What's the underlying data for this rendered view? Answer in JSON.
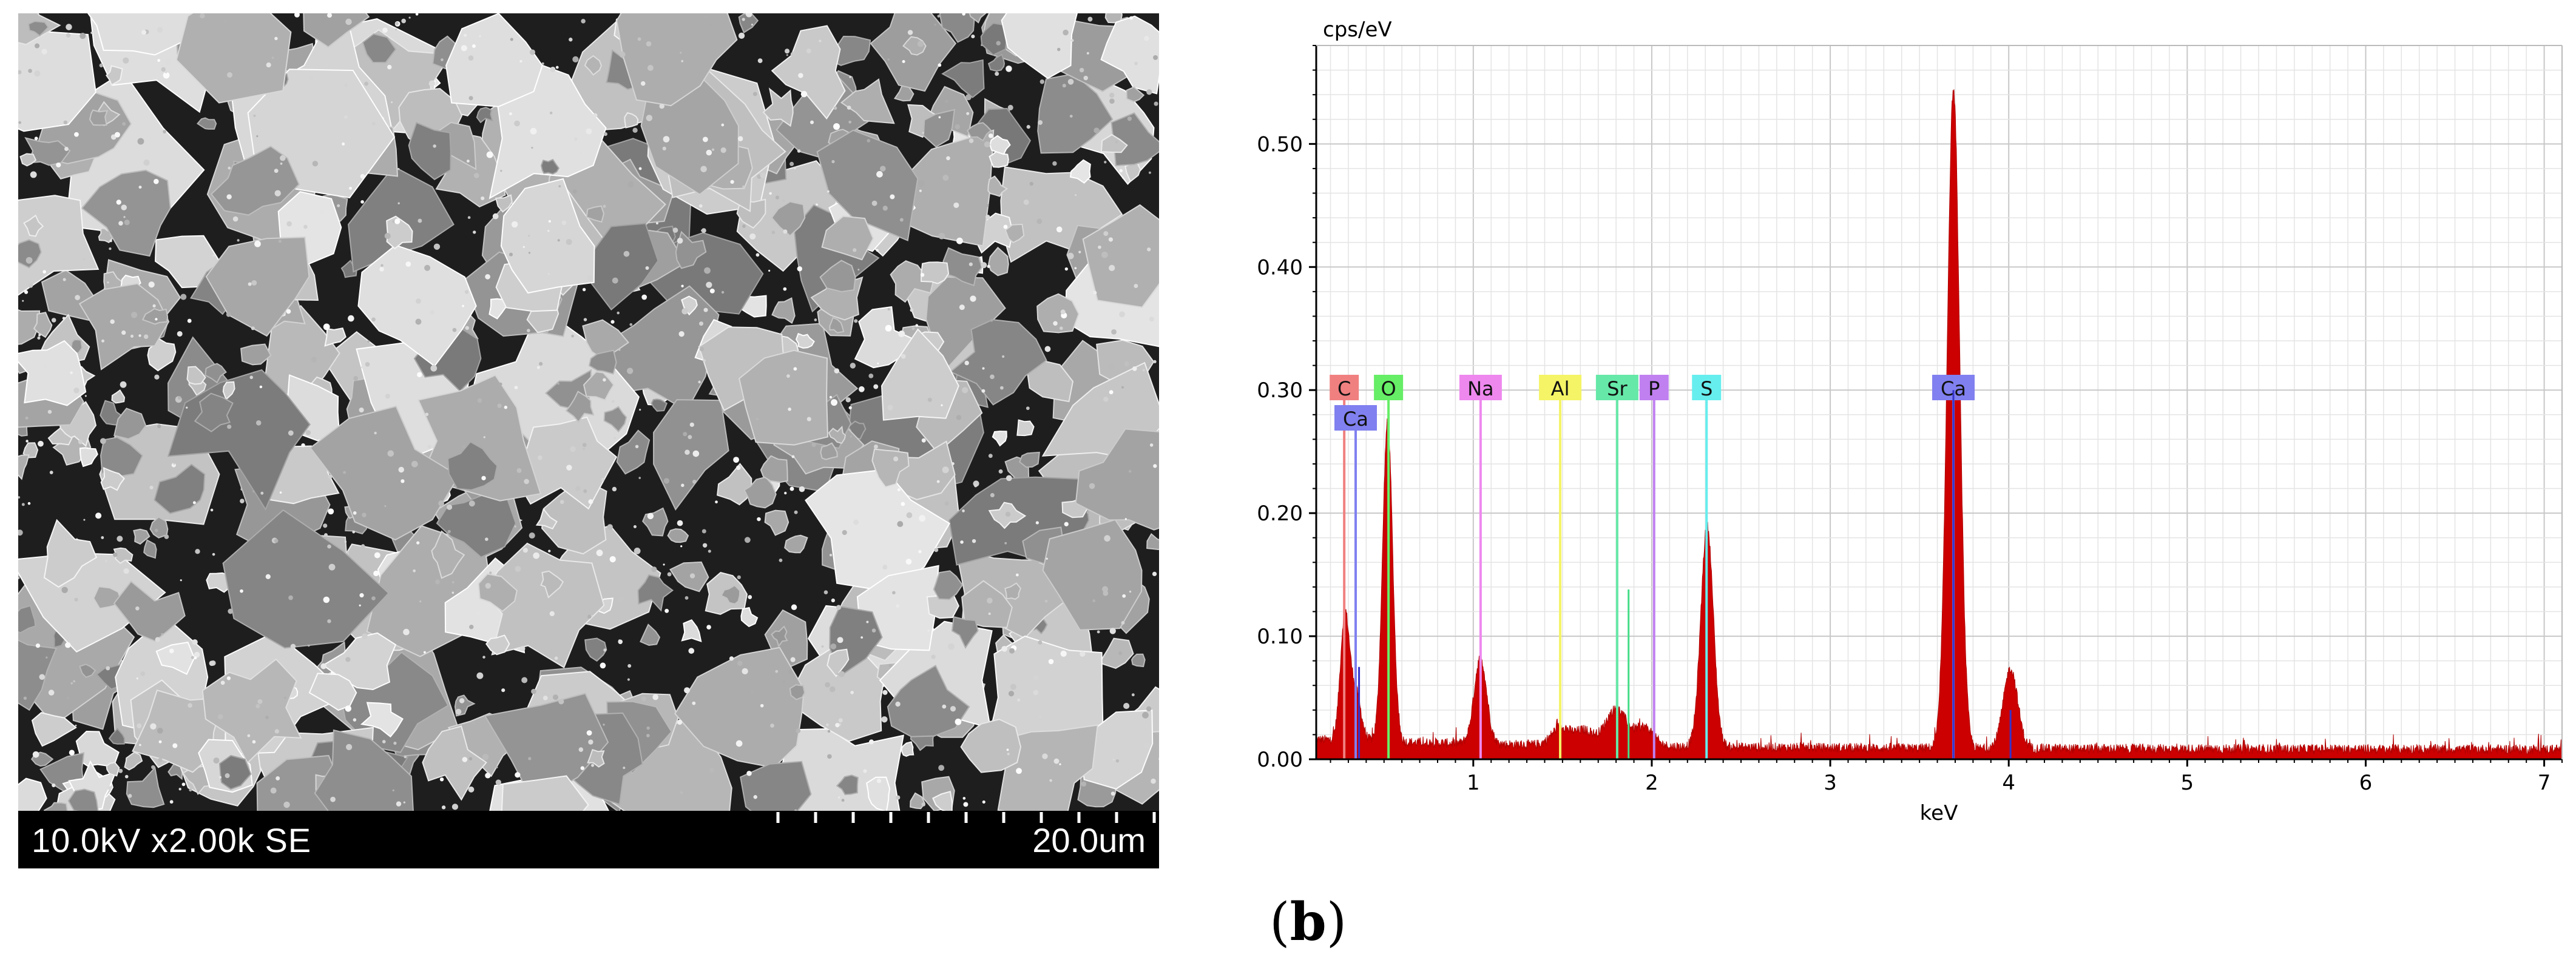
{
  "sem": {
    "info_label": "10.0kV x2.00k SE",
    "scale_label": "20.0um",
    "scale_ticks": 11
  },
  "caption": {
    "open": "(",
    "letter": "b",
    "close": ")"
  },
  "chart_data": {
    "type": "area",
    "title": "",
    "ylabel": "cps/eV",
    "xlabel": "keV",
    "xlim": [
      0.12,
      7.1
    ],
    "ylim": [
      0,
      0.58
    ],
    "grid": true,
    "xticks": [
      1,
      2,
      3,
      4,
      5,
      6,
      7
    ],
    "yticks": [
      0.0,
      0.1,
      0.2,
      0.3,
      0.4,
      0.5
    ],
    "ytick_labels": [
      "0.00",
      "0.10",
      "0.20",
      "0.30",
      "0.40",
      "0.50"
    ],
    "fill_color": "#cc0000",
    "baseline": 0.008,
    "peaks": [
      {
        "x": 0.28,
        "height": 0.1,
        "width": 0.025
      },
      {
        "x": 0.34,
        "height": 0.04,
        "width": 0.03
      },
      {
        "x": 0.52,
        "height": 0.26,
        "width": 0.028
      },
      {
        "x": 1.04,
        "height": 0.07,
        "width": 0.035
      },
      {
        "x": 1.49,
        "height": 0.015,
        "width": 0.05
      },
      {
        "x": 1.62,
        "height": 0.012,
        "width": 0.05
      },
      {
        "x": 1.8,
        "height": 0.03,
        "width": 0.06
      },
      {
        "x": 1.96,
        "height": 0.015,
        "width": 0.05
      },
      {
        "x": 2.31,
        "height": 0.18,
        "width": 0.035
      },
      {
        "x": 3.69,
        "height": 0.535,
        "width": 0.035
      },
      {
        "x": 4.01,
        "height": 0.065,
        "width": 0.04
      }
    ],
    "element_lines": [
      {
        "label": "C",
        "x": 0.277,
        "color": "#f08080",
        "label_row": 0
      },
      {
        "label": "Ca",
        "x": 0.341,
        "color": "#8080f0",
        "label_row": 1
      },
      {
        "label": "O",
        "x": 0.525,
        "color": "#66ee66",
        "label_row": 0
      },
      {
        "label": "Na",
        "x": 1.041,
        "color": "#ee88ee",
        "label_row": 0
      },
      {
        "label": "Al",
        "x": 1.487,
        "color": "#f4f466",
        "label_row": 0
      },
      {
        "label": "Sr",
        "x": 1.806,
        "color": "#66e8a8",
        "label_row": 0
      },
      {
        "label": "P",
        "x": 2.013,
        "color": "#c080f0",
        "label_row": 0
      },
      {
        "label": "S",
        "x": 2.307,
        "color": "#66eeee",
        "label_row": 0
      },
      {
        "label": "Ca",
        "x": 3.69,
        "color": "#8080f0",
        "label_row": 0
      }
    ]
  }
}
